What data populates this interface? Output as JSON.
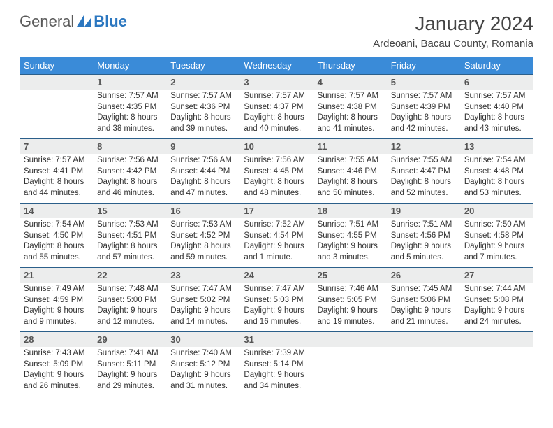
{
  "logo": {
    "text1": "General",
    "text2": "Blue"
  },
  "title": "January 2024",
  "subtitle": "Ardeoani, Bacau County, Romania",
  "colors": {
    "header_bg": "#3a8bd8",
    "header_text": "#ffffff",
    "daynum_bg": "#eceded",
    "week_border": "#2b5f8a",
    "body_text": "#333333",
    "logo_gray": "#5a5a5a",
    "logo_blue": "#2b77c0"
  },
  "day_labels": [
    "Sunday",
    "Monday",
    "Tuesday",
    "Wednesday",
    "Thursday",
    "Friday",
    "Saturday"
  ],
  "weeks": [
    [
      {
        "num": "",
        "lines": []
      },
      {
        "num": "1",
        "lines": [
          "Sunrise: 7:57 AM",
          "Sunset: 4:35 PM",
          "Daylight: 8 hours",
          "and 38 minutes."
        ]
      },
      {
        "num": "2",
        "lines": [
          "Sunrise: 7:57 AM",
          "Sunset: 4:36 PM",
          "Daylight: 8 hours",
          "and 39 minutes."
        ]
      },
      {
        "num": "3",
        "lines": [
          "Sunrise: 7:57 AM",
          "Sunset: 4:37 PM",
          "Daylight: 8 hours",
          "and 40 minutes."
        ]
      },
      {
        "num": "4",
        "lines": [
          "Sunrise: 7:57 AM",
          "Sunset: 4:38 PM",
          "Daylight: 8 hours",
          "and 41 minutes."
        ]
      },
      {
        "num": "5",
        "lines": [
          "Sunrise: 7:57 AM",
          "Sunset: 4:39 PM",
          "Daylight: 8 hours",
          "and 42 minutes."
        ]
      },
      {
        "num": "6",
        "lines": [
          "Sunrise: 7:57 AM",
          "Sunset: 4:40 PM",
          "Daylight: 8 hours",
          "and 43 minutes."
        ]
      }
    ],
    [
      {
        "num": "7",
        "lines": [
          "Sunrise: 7:57 AM",
          "Sunset: 4:41 PM",
          "Daylight: 8 hours",
          "and 44 minutes."
        ]
      },
      {
        "num": "8",
        "lines": [
          "Sunrise: 7:56 AM",
          "Sunset: 4:42 PM",
          "Daylight: 8 hours",
          "and 46 minutes."
        ]
      },
      {
        "num": "9",
        "lines": [
          "Sunrise: 7:56 AM",
          "Sunset: 4:44 PM",
          "Daylight: 8 hours",
          "and 47 minutes."
        ]
      },
      {
        "num": "10",
        "lines": [
          "Sunrise: 7:56 AM",
          "Sunset: 4:45 PM",
          "Daylight: 8 hours",
          "and 48 minutes."
        ]
      },
      {
        "num": "11",
        "lines": [
          "Sunrise: 7:55 AM",
          "Sunset: 4:46 PM",
          "Daylight: 8 hours",
          "and 50 minutes."
        ]
      },
      {
        "num": "12",
        "lines": [
          "Sunrise: 7:55 AM",
          "Sunset: 4:47 PM",
          "Daylight: 8 hours",
          "and 52 minutes."
        ]
      },
      {
        "num": "13",
        "lines": [
          "Sunrise: 7:54 AM",
          "Sunset: 4:48 PM",
          "Daylight: 8 hours",
          "and 53 minutes."
        ]
      }
    ],
    [
      {
        "num": "14",
        "lines": [
          "Sunrise: 7:54 AM",
          "Sunset: 4:50 PM",
          "Daylight: 8 hours",
          "and 55 minutes."
        ]
      },
      {
        "num": "15",
        "lines": [
          "Sunrise: 7:53 AM",
          "Sunset: 4:51 PM",
          "Daylight: 8 hours",
          "and 57 minutes."
        ]
      },
      {
        "num": "16",
        "lines": [
          "Sunrise: 7:53 AM",
          "Sunset: 4:52 PM",
          "Daylight: 8 hours",
          "and 59 minutes."
        ]
      },
      {
        "num": "17",
        "lines": [
          "Sunrise: 7:52 AM",
          "Sunset: 4:54 PM",
          "Daylight: 9 hours",
          "and 1 minute."
        ]
      },
      {
        "num": "18",
        "lines": [
          "Sunrise: 7:51 AM",
          "Sunset: 4:55 PM",
          "Daylight: 9 hours",
          "and 3 minutes."
        ]
      },
      {
        "num": "19",
        "lines": [
          "Sunrise: 7:51 AM",
          "Sunset: 4:56 PM",
          "Daylight: 9 hours",
          "and 5 minutes."
        ]
      },
      {
        "num": "20",
        "lines": [
          "Sunrise: 7:50 AM",
          "Sunset: 4:58 PM",
          "Daylight: 9 hours",
          "and 7 minutes."
        ]
      }
    ],
    [
      {
        "num": "21",
        "lines": [
          "Sunrise: 7:49 AM",
          "Sunset: 4:59 PM",
          "Daylight: 9 hours",
          "and 9 minutes."
        ]
      },
      {
        "num": "22",
        "lines": [
          "Sunrise: 7:48 AM",
          "Sunset: 5:00 PM",
          "Daylight: 9 hours",
          "and 12 minutes."
        ]
      },
      {
        "num": "23",
        "lines": [
          "Sunrise: 7:47 AM",
          "Sunset: 5:02 PM",
          "Daylight: 9 hours",
          "and 14 minutes."
        ]
      },
      {
        "num": "24",
        "lines": [
          "Sunrise: 7:47 AM",
          "Sunset: 5:03 PM",
          "Daylight: 9 hours",
          "and 16 minutes."
        ]
      },
      {
        "num": "25",
        "lines": [
          "Sunrise: 7:46 AM",
          "Sunset: 5:05 PM",
          "Daylight: 9 hours",
          "and 19 minutes."
        ]
      },
      {
        "num": "26",
        "lines": [
          "Sunrise: 7:45 AM",
          "Sunset: 5:06 PM",
          "Daylight: 9 hours",
          "and 21 minutes."
        ]
      },
      {
        "num": "27",
        "lines": [
          "Sunrise: 7:44 AM",
          "Sunset: 5:08 PM",
          "Daylight: 9 hours",
          "and 24 minutes."
        ]
      }
    ],
    [
      {
        "num": "28",
        "lines": [
          "Sunrise: 7:43 AM",
          "Sunset: 5:09 PM",
          "Daylight: 9 hours",
          "and 26 minutes."
        ]
      },
      {
        "num": "29",
        "lines": [
          "Sunrise: 7:41 AM",
          "Sunset: 5:11 PM",
          "Daylight: 9 hours",
          "and 29 minutes."
        ]
      },
      {
        "num": "30",
        "lines": [
          "Sunrise: 7:40 AM",
          "Sunset: 5:12 PM",
          "Daylight: 9 hours",
          "and 31 minutes."
        ]
      },
      {
        "num": "31",
        "lines": [
          "Sunrise: 7:39 AM",
          "Sunset: 5:14 PM",
          "Daylight: 9 hours",
          "and 34 minutes."
        ]
      },
      {
        "num": "",
        "lines": []
      },
      {
        "num": "",
        "lines": []
      },
      {
        "num": "",
        "lines": []
      }
    ]
  ]
}
